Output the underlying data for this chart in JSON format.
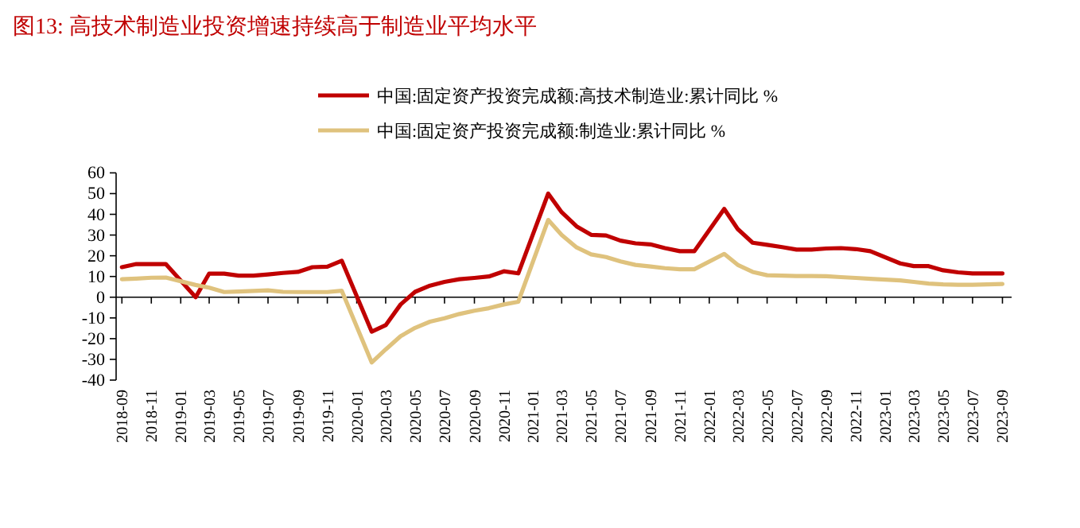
{
  "chart_data": {
    "type": "line",
    "title": "图13:  高技术制造业投资增速持续高于制造业平均水平",
    "x": [
      "2018-09",
      "2018-10",
      "2018-11",
      "2018-12",
      "2019-02",
      "2019-03",
      "2019-04",
      "2019-05",
      "2019-06",
      "2019-07",
      "2019-08",
      "2019-09",
      "2019-10",
      "2019-11",
      "2019-12",
      "2020-02",
      "2020-03",
      "2020-04",
      "2020-05",
      "2020-06",
      "2020-07",
      "2020-08",
      "2020-09",
      "2020-10",
      "2020-11",
      "2020-12",
      "2021-02",
      "2021-03",
      "2021-04",
      "2021-05",
      "2021-06",
      "2021-07",
      "2021-08",
      "2021-09",
      "2021-10",
      "2021-11",
      "2021-12",
      "2022-02",
      "2022-03",
      "2022-04",
      "2022-05",
      "2022-06",
      "2022-07",
      "2022-08",
      "2022-09",
      "2022-10",
      "2022-11",
      "2022-12",
      "2023-02",
      "2023-03",
      "2023-04",
      "2023-05",
      "2023-06",
      "2023-07",
      "2023-08",
      "2023-09"
    ],
    "series": [
      {
        "name": "中国:固定资产投资完成额:高技术制造业:累计同比 %",
        "color": "#c00000",
        "values": [
          14.5,
          16,
          16,
          16,
          0,
          11.4,
          11.4,
          10.4,
          10.4,
          11,
          11.7,
          12.2,
          14.5,
          14.7,
          17.6,
          -16.6,
          -13.5,
          -3.5,
          2.6,
          5.6,
          7.4,
          8.7,
          9.3,
          10,
          12.5,
          11.5,
          50,
          41,
          34.2,
          30.1,
          29.8,
          27.3,
          26,
          25.5,
          23.7,
          22.2,
          22.2,
          42.6,
          32.9,
          26.3,
          25.3,
          24.2,
          23,
          23,
          23.5,
          23.7,
          23.2,
          22.2,
          16.3,
          15,
          15,
          13,
          12,
          11.5,
          11.5,
          11.5
        ]
      },
      {
        "name": "中国:固定资产投资完成额:制造业:累计同比 %",
        "color": "#dfc27d",
        "values": [
          8.7,
          9,
          9.4,
          9.5,
          5.9,
          4.6,
          2.5,
          2.7,
          3,
          3.3,
          2.6,
          2.5,
          2.5,
          2.5,
          3.1,
          -31.5,
          -25.2,
          -18.8,
          -14.8,
          -11.8,
          -10.2,
          -8.1,
          -6.5,
          -5.3,
          -3.5,
          -2.2,
          37.3,
          30,
          24,
          20.7,
          19.4,
          17.3,
          15.6,
          14.8,
          14,
          13.5,
          13.5,
          20.9,
          15.6,
          12.2,
          10.6,
          10.4,
          10.2,
          10.2,
          10.1,
          9.7,
          9.3,
          8.9,
          8.1,
          7.4,
          6.6,
          6.2,
          6,
          6,
          6.2,
          6.4
        ]
      }
    ],
    "xlim": [
      "2018-08-20",
      "2023-09-20"
    ],
    "xticks": [
      "2018-09",
      "2018-11",
      "2019-01",
      "2019-03",
      "2019-05",
      "2019-07",
      "2019-09",
      "2019-11",
      "2020-01",
      "2020-03",
      "2020-05",
      "2020-07",
      "2020-09",
      "2020-11",
      "2021-01",
      "2021-03",
      "2021-05",
      "2021-07",
      "2021-09",
      "2021-11",
      "2022-01",
      "2022-03",
      "2022-05",
      "2022-07",
      "2022-09",
      "2022-11",
      "2023-01",
      "2023-03",
      "2023-05",
      "2023-07",
      "2023-09"
    ],
    "ylim": [
      -40,
      60
    ],
    "yticks": [
      -40,
      -30,
      -20,
      -10,
      0,
      10,
      20,
      30,
      40,
      50,
      60
    ],
    "legend": "top",
    "marker": "none",
    "line_style": "solid"
  }
}
